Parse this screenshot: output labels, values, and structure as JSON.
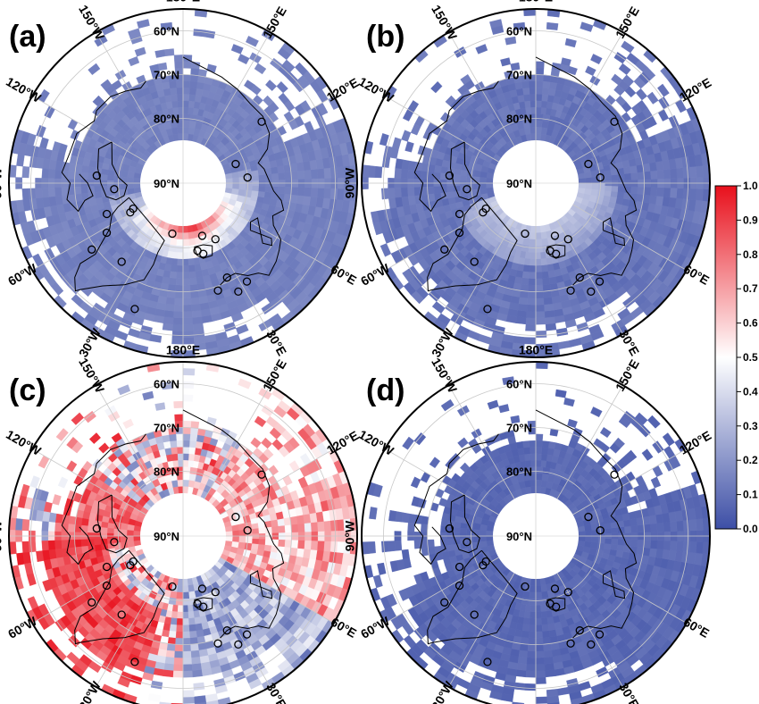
{
  "panels": [
    {
      "id": "a",
      "label": "(a)",
      "pattern": "ring",
      "seed": 11
    },
    {
      "id": "b",
      "label": "(b)",
      "pattern": "low",
      "seed": 23
    },
    {
      "id": "c",
      "label": "(c)",
      "pattern": "mixed",
      "seed": 37
    },
    {
      "id": "d",
      "label": "(d)",
      "pattern": "verylow",
      "seed": 53
    }
  ],
  "longitude_labels": [
    {
      "text": "180°E",
      "lon": 180
    },
    {
      "text": "150°E",
      "lon": 150
    },
    {
      "text": "120°E",
      "lon": 120
    },
    {
      "text": "90°W",
      "lon": -90
    },
    {
      "text": "60°E",
      "lon": 60
    },
    {
      "text": "30°E",
      "lon": 30
    },
    {
      "text": "30°W",
      "lon": -30
    },
    {
      "text": "60°W",
      "lon": -60
    },
    {
      "text": "120°W",
      "lon": -120
    },
    {
      "text": "150°W",
      "lon": -150
    }
  ],
  "latitude_labels": [
    {
      "text": "60°N",
      "lat": 60
    },
    {
      "text": "70°N",
      "lat": 70
    },
    {
      "text": "80°N",
      "lat": 80
    },
    {
      "text": "90°N",
      "lat": 90
    }
  ],
  "colorbar": {
    "ticks": [
      "1.0",
      "0.9",
      "0.8",
      "0.7",
      "0.6",
      "0.5",
      "0.4",
      "0.3",
      "0.2",
      "0.1",
      "0.0"
    ],
    "min": 0.0,
    "max": 1.0,
    "colors": {
      "low": "#3d4fa6",
      "mid": "#ffffff",
      "high": "#e8101c"
    }
  },
  "map_colors": {
    "coastline": "#000000",
    "grid": "#c8c8c8",
    "border": "#000000",
    "station": "#000000"
  },
  "stations": [
    {
      "lat": 79,
      "lon": 12
    },
    {
      "lat": 78,
      "lon": 16
    },
    {
      "lat": 80,
      "lon": 30
    },
    {
      "lat": 71,
      "lon": 25
    },
    {
      "lat": 69,
      "lon": 18
    },
    {
      "lat": 68,
      "lon": 33
    },
    {
      "lat": 67,
      "lon": 27
    },
    {
      "lat": 64,
      "lon": -21
    },
    {
      "lat": 72,
      "lon": -38
    },
    {
      "lat": 76,
      "lon": -68
    },
    {
      "lat": 81,
      "lon": -61
    },
    {
      "lat": 82,
      "lon": -63
    },
    {
      "lat": 79,
      "lon": -85
    },
    {
      "lat": 75,
      "lon": -95
    },
    {
      "lat": 74,
      "lon": -57
    },
    {
      "lat": 69,
      "lon": -54
    },
    {
      "lat": 83,
      "lon": -12
    },
    {
      "lat": 82,
      "lon": 20
    },
    {
      "lat": 80,
      "lon": 95
    },
    {
      "lat": 72,
      "lon": 128
    },
    {
      "lat": 82,
      "lon": 110
    }
  ]
}
